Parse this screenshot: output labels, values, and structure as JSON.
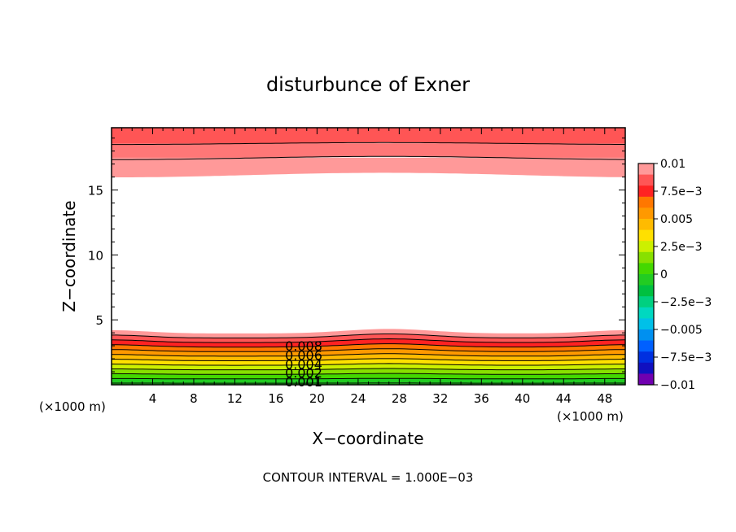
{
  "chart_data": {
    "type": "contour",
    "title": "disturbunce of Exner",
    "xlabel": "X−coordinate",
    "ylabel": "Z−coordinate",
    "x_unit_label": "(×1000 m)",
    "y_unit_label": "(×1000 m)",
    "footer": "CONTOUR INTERVAL = 1.000E−03",
    "xlim": [
      0,
      50
    ],
    "ylim": [
      0,
      19.8
    ],
    "x_ticks": [
      "4",
      "8",
      "12",
      "16",
      "20",
      "24",
      "28",
      "32",
      "36",
      "40",
      "44",
      "48"
    ],
    "y_ticks": [
      "5",
      "10",
      "15"
    ],
    "contour_interval": 0.001,
    "colorbar": {
      "range": [
        -0.01,
        0.01
      ],
      "tick_labels": [
        "0.01",
        "7.5e−3",
        "0.005",
        "2.5e−3",
        "0",
        "−2.5e−3",
        "−0.005",
        "−7.5e−3",
        "−0.01"
      ],
      "colors": [
        "#ff9999",
        "#ff5555",
        "#ff2222",
        "#ff7700",
        "#ff9900",
        "#ffbb00",
        "#ffe000",
        "#ccf000",
        "#88e000",
        "#44d800",
        "#22cc22",
        "#00c040",
        "#00d080",
        "#00d8c0",
        "#00c0e8",
        "#0090f0",
        "#0060ff",
        "#0030e0",
        "#1010c0",
        "#7000b0"
      ]
    },
    "contour_labels": [
      "0.008",
      "0.006",
      "0.004",
      "0.002",
      "0.001"
    ],
    "bands": {
      "top": [
        {
          "from_z": 19.8,
          "to_z": 18.6,
          "color": "#ff5555"
        },
        {
          "from_z": 18.6,
          "to_z": 17.5,
          "color": "#ff7777"
        },
        {
          "from_z": 17.5,
          "to_z": 16.2,
          "color": "#ff9999"
        }
      ],
      "bottom": [
        {
          "level": 3.95,
          "color": "#ff9999"
        },
        {
          "level": 3.6,
          "color": "#ff5555"
        },
        {
          "level": 3.25,
          "color": "#ff2222"
        },
        {
          "level": 2.9,
          "color": "#ff7700"
        },
        {
          "level": 2.55,
          "color": "#ff9900"
        },
        {
          "level": 2.2,
          "color": "#ffbb00"
        },
        {
          "level": 1.85,
          "color": "#ffe000"
        },
        {
          "level": 1.5,
          "color": "#ccf000"
        },
        {
          "level": 1.15,
          "color": "#88e000"
        },
        {
          "level": 0.8,
          "color": "#44d800"
        },
        {
          "level": 0.45,
          "color": "#22cc22"
        }
      ]
    }
  }
}
